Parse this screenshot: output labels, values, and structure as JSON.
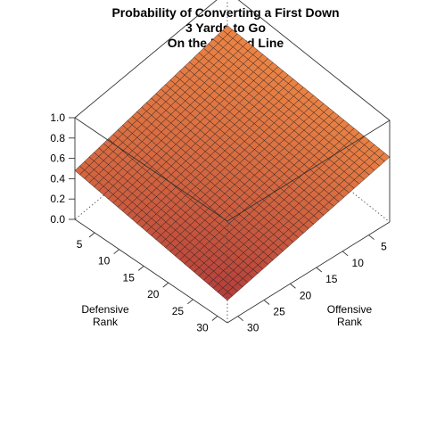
{
  "chart_data": {
    "type": "surface",
    "title": "Probability of Converting a First Down",
    "subtitle_lines": [
      "3 Yards to Go",
      "On the 50 Yard Line"
    ],
    "xlabel": [
      "Defensive",
      "Rank"
    ],
    "ylabel": [
      "Offensive",
      "Rank"
    ],
    "zlim": [
      0,
      1
    ],
    "xlim": [
      1,
      32
    ],
    "ylim": [
      1,
      32
    ],
    "z_ticks": [
      "0.0",
      "0.2",
      "0.4",
      "0.6",
      "0.8",
      "1.0"
    ],
    "x_ticks": [
      "5",
      "10",
      "15",
      "20",
      "25",
      "30"
    ],
    "y_ticks": [
      "5",
      "10",
      "15",
      "20",
      "25",
      "30"
    ],
    "grid_size": 32,
    "surface_corner_values": {
      "def1_off1": 0.66,
      "def32_off1": 0.64,
      "def1_off32": 0.48,
      "def32_off32": 0.22
    },
    "surface_color_low": "#b03a3a",
    "surface_color_high": "#f08a46"
  }
}
